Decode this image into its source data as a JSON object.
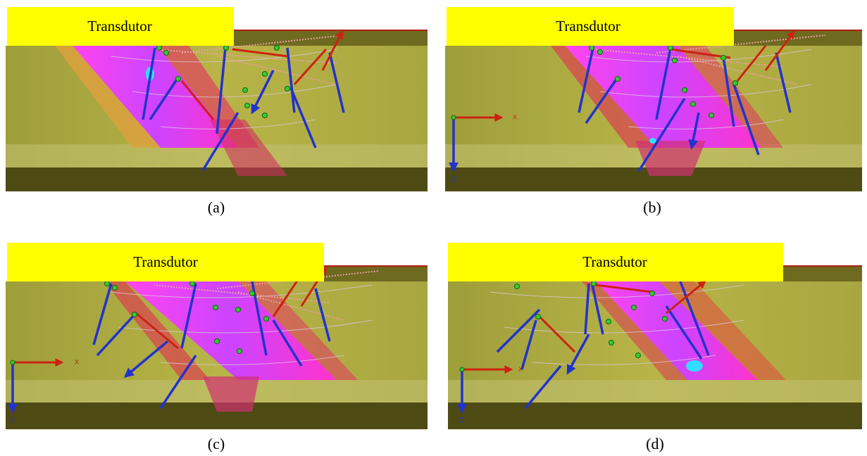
{
  "panels": [
    {
      "transducer": "Transdutor",
      "caption": "(a)"
    },
    {
      "transducer": "Transdutor",
      "caption": "(b)",
      "axis_x": "X",
      "axis_z": "Z"
    },
    {
      "transducer": "Transdutor",
      "caption": "(c)",
      "axis_x": "X",
      "axis_z": "Z"
    },
    {
      "transducer": "Transdutor",
      "caption": "(d)",
      "axis_x": "X",
      "axis_z": "Z"
    }
  ]
}
